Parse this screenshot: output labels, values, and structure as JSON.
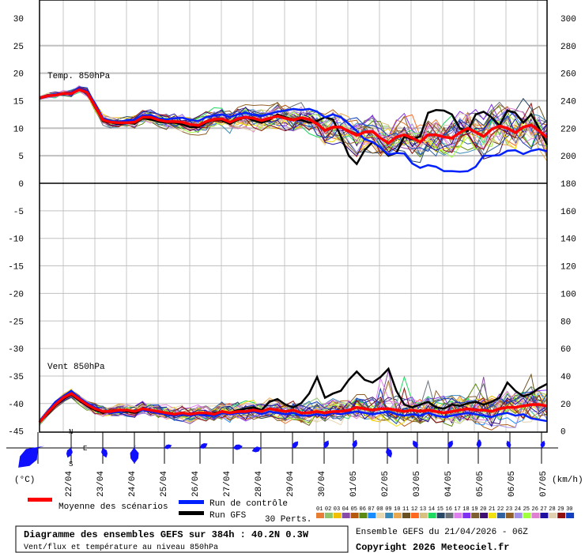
{
  "chart_data": {
    "type": "line",
    "title": "Diagramme des ensembles GEFS sur 384h : 40.2N 0.3W",
    "subtitle": "Vent/flux et température au niveau 850hPa",
    "run_label": "Ensemble GEFS du 21/04/2026 - 06Z",
    "copyright": "Copyright 2026 Meteociel.fr",
    "panel_temp_label": "Temp. 850hPa",
    "panel_wind_label": "Vent 850hPa",
    "left_unit": "(°C)",
    "right_unit": "(km/h)",
    "left_ticks": [
      30,
      25,
      20,
      15,
      10,
      5,
      0,
      -5,
      -10,
      -15,
      -20,
      -25,
      -30,
      -35,
      -40,
      -45
    ],
    "right_ticks": [
      300,
      280,
      260,
      240,
      220,
      200,
      180,
      160,
      140,
      120,
      100,
      80,
      60,
      40,
      20,
      0
    ],
    "left_ylim": [
      -45,
      30
    ],
    "right_ylim": [
      0,
      300
    ],
    "x_step_hours": 6,
    "x_range_hours": [
      0,
      384
    ],
    "date_labels": [
      "22/04",
      "23/04",
      "24/04",
      "25/04",
      "26/04",
      "27/04",
      "28/04",
      "29/04",
      "30/04",
      "01/05",
      "02/05",
      "03/05",
      "04/05",
      "05/05",
      "06/05",
      "07/05"
    ],
    "legend": {
      "mean": "Moyenne des scénarios",
      "control": "Run de contrôle",
      "gfs": "Run GFS",
      "perts": "30 Perts."
    },
    "compass": {
      "n": "N",
      "s": "S",
      "e": "E"
    },
    "colors": {
      "mean": "#ff0000",
      "control": "#0020ff",
      "gfs": "#000000",
      "rose": "#1010ff"
    },
    "member_ids": [
      "01",
      "02",
      "03",
      "04",
      "05",
      "06",
      "07",
      "08",
      "09",
      "10",
      "11",
      "12",
      "13",
      "14",
      "15",
      "16",
      "17",
      "18",
      "19",
      "20",
      "21",
      "22",
      "23",
      "24",
      "25",
      "26",
      "27",
      "28",
      "29",
      "30"
    ],
    "member_colors": [
      "#e87d35",
      "#8fc46a",
      "#f0c000",
      "#8a4aa8",
      "#b35a10",
      "#5a8a10",
      "#1a8cff",
      "#e8d8b0",
      "#3a8ab8",
      "#e8a850",
      "#6a5020",
      "#ff6820",
      "#d8c080",
      "#20d860",
      "#284868",
      "#6a7078",
      "#e080f0",
      "#8030f0",
      "#806030",
      "#401070",
      "#f0e010",
      "#3060a0",
      "#906028",
      "#a090e8",
      "#a0ff40",
      "#e080d0",
      "#2010a0",
      "#e0d0b0",
      "#901010",
      "#1040c0"
    ],
    "temp_mean": [
      15.5,
      15.9,
      16,
      16.3,
      16.3,
      17,
      16.5,
      14,
      11.5,
      11.1,
      11,
      11,
      11.1,
      12,
      12,
      11.5,
      11.2,
      11.2,
      11.1,
      10.7,
      10.5,
      11.2,
      11.6,
      11.7,
      11.1,
      11.7,
      12,
      11.8,
      11.4,
      11.8,
      12.2,
      11.8,
      11.5,
      11.9,
      11.6,
      10.8,
      9.6,
      10.2,
      10.2,
      9.4,
      8.7,
      9.3,
      9.4,
      8.2,
      7.3,
      8.4,
      8.8,
      8.2,
      7.5,
      8.8,
      8.8,
      8.4,
      8.2,
      9.2,
      10,
      9.3,
      8.5,
      9.8,
      10.4,
      10,
      9.2,
      10.2,
      10.6,
      9.5,
      8.3
    ],
    "temp_control": [
      15.6,
      16,
      16.2,
      16.4,
      16.5,
      17.2,
      16.8,
      14.5,
      11.8,
      11.3,
      11.2,
      11.4,
      11.5,
      12.3,
      12.4,
      11.8,
      11.6,
      11.8,
      11.9,
      11.5,
      11.3,
      12,
      12.3,
      12.5,
      12,
      12.5,
      12.8,
      12.4,
      12.2,
      12.6,
      13,
      13.2,
      13.5,
      13.3,
      13.5,
      13,
      12,
      12.5,
      12,
      10.8,
      9.5,
      8,
      7.5,
      6.5,
      5.2,
      5.5,
      5.4,
      3.6,
      2.8,
      3.3,
      3,
      2.2,
      2.2,
      2.1,
      2.2,
      3,
      5,
      5,
      5.1,
      5.9,
      6,
      5.3,
      5.9,
      6.2,
      5.8
    ],
    "temp_gfs": [
      15.4,
      15.8,
      16,
      16.2,
      16.3,
      17,
      16.4,
      13.8,
      11.3,
      11,
      10.8,
      11,
      10.8,
      11.8,
      11.6,
      11.2,
      11,
      11,
      10.7,
      10.2,
      10.2,
      11,
      11.5,
      11.4,
      10.8,
      11.5,
      12,
      11.4,
      11,
      11.5,
      12.5,
      12,
      11.6,
      11.5,
      11,
      11.3,
      12,
      11.6,
      8.5,
      5,
      3.5,
      6,
      7.5,
      6.5,
      5,
      5.5,
      8.5,
      8,
      8.5,
      12.8,
      13.3,
      13.2,
      12.5,
      10,
      9.5,
      12.5,
      13,
      12,
      10.5,
      13.2,
      12.8,
      11,
      12.5,
      10,
      7
    ],
    "wind_mean": [
      7,
      14,
      20,
      25,
      28,
      24,
      20,
      17,
      15,
      15,
      16,
      16,
      15,
      17,
      16,
      15,
      14,
      13,
      14,
      13,
      14,
      14,
      13,
      15,
      14,
      15,
      15,
      16,
      15,
      17,
      16,
      15,
      16,
      14,
      14,
      15,
      14,
      15,
      15,
      16,
      18,
      17,
      16,
      17,
      17,
      16,
      15,
      16,
      15,
      16,
      15,
      14,
      15,
      16,
      17,
      16,
      16,
      15,
      17,
      18,
      18,
      19,
      20,
      20,
      19
    ],
    "wind_control": [
      8,
      15,
      22,
      26,
      30,
      25,
      21,
      18,
      15,
      14,
      15,
      16,
      15,
      16,
      15,
      14,
      13,
      12,
      13,
      12,
      13,
      12,
      12,
      14,
      13,
      14,
      14,
      15,
      13,
      15,
      14,
      13,
      14,
      12,
      12,
      13,
      12,
      14,
      13,
      14,
      15,
      14,
      13,
      14,
      15,
      13,
      12,
      13,
      12,
      14,
      12,
      11,
      12,
      13,
      14,
      13,
      12,
      11,
      13,
      14,
      12,
      13,
      10,
      9,
      8
    ],
    "wind_gfs": [
      7,
      13,
      19,
      24,
      27,
      23,
      19,
      16,
      14,
      15,
      16,
      15,
      14,
      16,
      15,
      14,
      13,
      12,
      13,
      12,
      13,
      13,
      14,
      15,
      14,
      16,
      17,
      18,
      16,
      22,
      24,
      20,
      18,
      21,
      28,
      40,
      25,
      28,
      30,
      38,
      44,
      38,
      36,
      40,
      46,
      30,
      20,
      18,
      20,
      22,
      18,
      17,
      20,
      19,
      21,
      22,
      20,
      22,
      25,
      36,
      30,
      26,
      28,
      32,
      35
    ],
    "wind_roses": [
      {
        "dir": 225,
        "size": 1.0
      },
      {
        "dir": 200,
        "size": 0.6
      },
      {
        "dir": 160,
        "size": 0.6
      },
      {
        "dir": 180,
        "size": 0.9
      },
      {
        "dir": 70,
        "size": 0.45
      },
      {
        "dir": 60,
        "size": 0.5
      },
      {
        "dir": 80,
        "size": 0.55
      },
      {
        "dir": 250,
        "size": 0.55
      },
      {
        "dir": 40,
        "size": 0.5
      },
      {
        "dir": 30,
        "size": 0.5
      },
      {
        "dir": 20,
        "size": 0.5
      },
      {
        "dir": 160,
        "size": 0.6
      },
      {
        "dir": 330,
        "size": 0.5
      },
      {
        "dir": 30,
        "size": 0.5
      },
      {
        "dir": 10,
        "size": 0.5
      },
      {
        "dir": 340,
        "size": 0.45
      },
      {
        "dir": 20,
        "size": 0.45
      }
    ]
  }
}
